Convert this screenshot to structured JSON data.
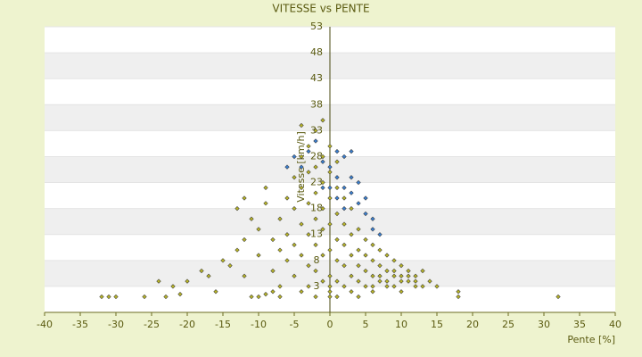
{
  "chart_data": {
    "type": "scatter",
    "title": "VITESSE vs PENTE",
    "x_label": "Pente [%]",
    "y_label": "Vitesse [km/h]",
    "xlim": [
      -40,
      40
    ],
    "xticks": [
      -40,
      -35,
      -30,
      -25,
      -20,
      -15,
      -10,
      -5,
      0,
      5,
      10,
      15,
      20,
      25,
      30,
      35,
      40
    ],
    "ylim": [
      -2,
      53
    ],
    "yticks": [
      3,
      8,
      13,
      18,
      23,
      28,
      33,
      38,
      43,
      48,
      53
    ],
    "grid": true,
    "series": [
      {
        "color": "#b8b428",
        "x": [
          -32,
          -31,
          -30,
          -23,
          -21,
          -24,
          -22,
          -18,
          -17,
          -15,
          -14,
          -13,
          -12,
          -13,
          -12,
          -11,
          -10,
          -10,
          -9,
          -9,
          -8,
          -8,
          -7,
          -7,
          -7,
          -6,
          -6,
          -6,
          -5,
          -5,
          -5,
          -5,
          -4,
          -4,
          -4,
          -4,
          -4,
          -4,
          -3,
          -3,
          -3,
          -3,
          -3,
          -3,
          -2,
          -2,
          -2,
          -2,
          -2,
          -2,
          -2,
          -1,
          -1,
          -1,
          -1,
          -1,
          -1,
          -1,
          0,
          0,
          0,
          0,
          0,
          0,
          0,
          0,
          0,
          1,
          1,
          1,
          1,
          1,
          1,
          1,
          2,
          2,
          2,
          2,
          2,
          3,
          3,
          3,
          3,
          3,
          4,
          4,
          4,
          4,
          5,
          5,
          5,
          5,
          6,
          6,
          6,
          6,
          7,
          7,
          7,
          8,
          8,
          8,
          9,
          9,
          9,
          10,
          10,
          10,
          11,
          11,
          12,
          12,
          13,
          13,
          14,
          15,
          18,
          18,
          32,
          -11,
          -10,
          -9,
          -7,
          -20,
          -16,
          -12,
          -8,
          4,
          6,
          7,
          8,
          9,
          10,
          11,
          12,
          -26
        ],
        "values": [
          1,
          1,
          1,
          1,
          1.5,
          4,
          3,
          6,
          5,
          8,
          7,
          10,
          12,
          18,
          20,
          16,
          9,
          14,
          19,
          22,
          12,
          6,
          16,
          10,
          3,
          20,
          13,
          8,
          24,
          18,
          11,
          5,
          34,
          28,
          22,
          15,
          9,
          2,
          30,
          25,
          19,
          13,
          7,
          3,
          33,
          26,
          21,
          16,
          11,
          6,
          1,
          35,
          28,
          23,
          18,
          14,
          9,
          4,
          30,
          25,
          20,
          15,
          10,
          5,
          1,
          2,
          3,
          27,
          22,
          17,
          12,
          8,
          4,
          1,
          20,
          15,
          11,
          7,
          3,
          18,
          13,
          9,
          5,
          2,
          14,
          10,
          7,
          4,
          12,
          9,
          6,
          3,
          11,
          8,
          5,
          2,
          10,
          7,
          4,
          9,
          6,
          3,
          8,
          5,
          3,
          7,
          5,
          2,
          6,
          4,
          5,
          3,
          6,
          3,
          4,
          3,
          2,
          1,
          1,
          1,
          1,
          1.5,
          1,
          4,
          2,
          5,
          2,
          1,
          3,
          5,
          4,
          6,
          4,
          5,
          4,
          1
        ]
      },
      {
        "color": "#3a7fd0",
        "x": [
          -6,
          -5,
          -3,
          -2,
          -1,
          0,
          1,
          1,
          2,
          2,
          3,
          3,
          4,
          4,
          5,
          5,
          6,
          6,
          -1,
          0,
          1,
          2,
          3,
          -4,
          7
        ],
        "values": [
          26,
          28,
          29,
          31,
          27,
          26,
          29,
          24,
          22,
          28,
          24,
          29,
          19,
          23,
          17,
          20,
          16,
          14,
          22,
          22,
          20,
          18,
          21,
          26,
          13
        ]
      }
    ]
  }
}
